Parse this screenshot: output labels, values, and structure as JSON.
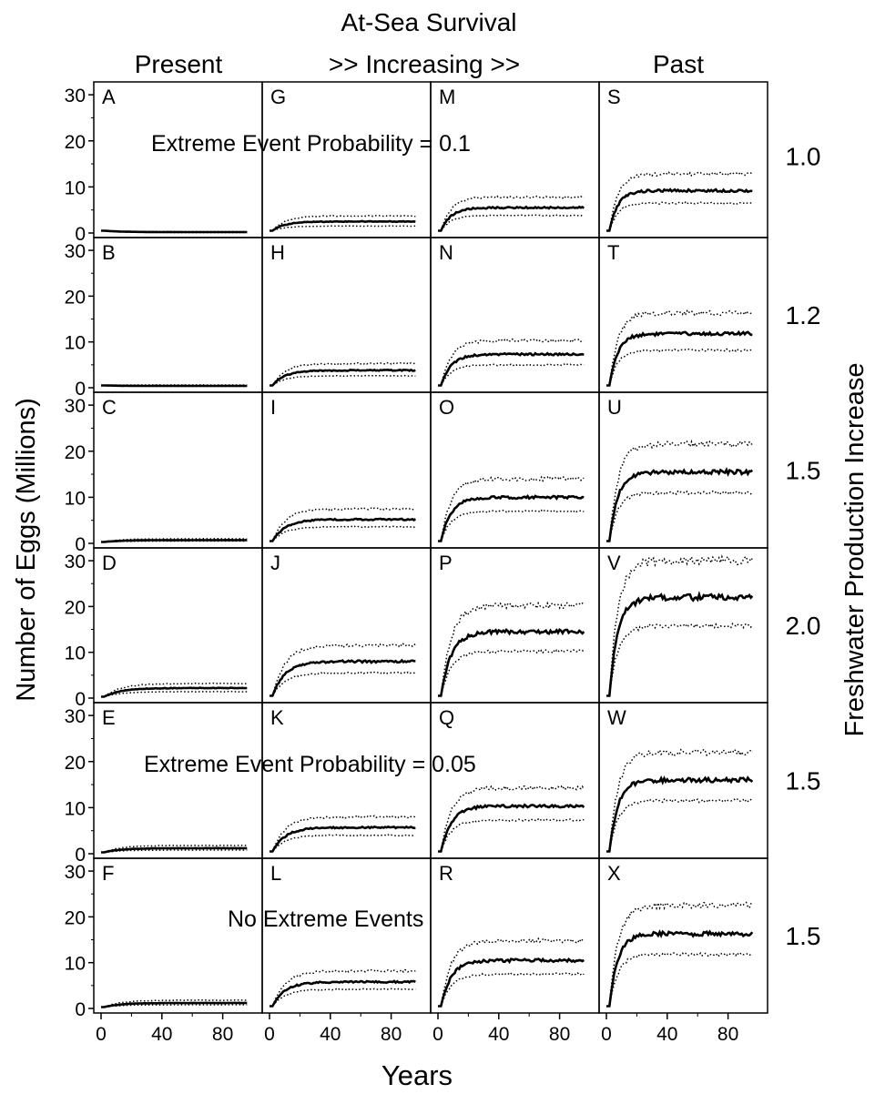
{
  "figure": {
    "title": "At-Sea Survival",
    "column_headers": [
      "Present",
      ">> Increasing >>",
      "Past"
    ],
    "xlabel": "Years",
    "ylabel": "Number of Eggs (Millions)",
    "right_label": "Freshwater Production Increase",
    "row_values": [
      "1.0",
      "1.2",
      "1.5",
      "2.0",
      "1.5",
      "1.5"
    ],
    "annotations": [
      {
        "text": "Extreme Event Probability = 0.1",
        "row": 0
      },
      {
        "text": "Extreme Event Probability = 0.05",
        "row": 4
      },
      {
        "text": "No Extreme Events",
        "row": 5
      }
    ],
    "xticks": [
      "0",
      "40",
      "80"
    ],
    "yticks": [
      "0",
      "10",
      "20",
      "30"
    ]
  },
  "chart_data": {
    "type": "line",
    "layout": "small multiples, 6 rows x 4 columns",
    "x_range": [
      0,
      100
    ],
    "ylim": [
      0,
      32
    ],
    "x_tick_values": [
      0,
      40,
      80
    ],
    "y_tick_values": [
      0,
      10,
      20,
      30
    ],
    "series_styles": {
      "median": "solid thick black",
      "bounds": "dotted black"
    },
    "panels": [
      {
        "label": "A",
        "row": 0,
        "col": 0,
        "start": 0.5,
        "plateau": 0.2,
        "lower": 0.1,
        "upper": 0.3
      },
      {
        "label": "G",
        "row": 0,
        "col": 1,
        "start": 0.5,
        "plateau": 2.5,
        "lower": 1.5,
        "upper": 3.7
      },
      {
        "label": "M",
        "row": 0,
        "col": 2,
        "start": 0.5,
        "plateau": 5.5,
        "lower": 3.8,
        "upper": 7.8
      },
      {
        "label": "S",
        "row": 0,
        "col": 3,
        "start": 0.5,
        "plateau": 9.2,
        "lower": 6.5,
        "upper": 12.8
      },
      {
        "label": "B",
        "row": 1,
        "col": 0,
        "start": 0.5,
        "plateau": 0.4,
        "lower": 0.3,
        "upper": 0.6
      },
      {
        "label": "H",
        "row": 1,
        "col": 1,
        "start": 0.5,
        "plateau": 3.8,
        "lower": 2.6,
        "upper": 5.3
      },
      {
        "label": "N",
        "row": 1,
        "col": 2,
        "start": 0.5,
        "plateau": 7.3,
        "lower": 5.0,
        "upper": 10.3
      },
      {
        "label": "T",
        "row": 1,
        "col": 3,
        "start": 0.5,
        "plateau": 11.8,
        "lower": 8.2,
        "upper": 16.3
      },
      {
        "label": "C",
        "row": 2,
        "col": 0,
        "start": 0.3,
        "plateau": 0.7,
        "lower": 0.5,
        "upper": 1.0
      },
      {
        "label": "I",
        "row": 2,
        "col": 1,
        "start": 0.5,
        "plateau": 5.2,
        "lower": 3.6,
        "upper": 7.5
      },
      {
        "label": "O",
        "row": 2,
        "col": 2,
        "start": 0.5,
        "plateau": 10.0,
        "lower": 7.0,
        "upper": 14.0
      },
      {
        "label": "U",
        "row": 2,
        "col": 3,
        "start": 0.5,
        "plateau": 15.5,
        "lower": 11.0,
        "upper": 21.5
      },
      {
        "label": "D",
        "row": 3,
        "col": 0,
        "start": 0.3,
        "plateau": 2.2,
        "lower": 1.4,
        "upper": 3.2
      },
      {
        "label": "J",
        "row": 3,
        "col": 1,
        "start": 0.5,
        "plateau": 8.0,
        "lower": 5.5,
        "upper": 11.5
      },
      {
        "label": "P",
        "row": 3,
        "col": 2,
        "start": 0.5,
        "plateau": 14.5,
        "lower": 10.2,
        "upper": 20.2
      },
      {
        "label": "V",
        "row": 3,
        "col": 3,
        "start": 0.5,
        "plateau": 22.0,
        "lower": 15.8,
        "upper": 30.0
      },
      {
        "label": "E",
        "row": 4,
        "col": 0,
        "start": 0.3,
        "plateau": 1.2,
        "lower": 0.8,
        "upper": 1.8
      },
      {
        "label": "K",
        "row": 4,
        "col": 1,
        "start": 0.5,
        "plateau": 5.7,
        "lower": 4.0,
        "upper": 8.0
      },
      {
        "label": "Q",
        "row": 4,
        "col": 2,
        "start": 0.5,
        "plateau": 10.3,
        "lower": 7.3,
        "upper": 14.3
      },
      {
        "label": "W",
        "row": 4,
        "col": 3,
        "start": 0.5,
        "plateau": 16.0,
        "lower": 11.5,
        "upper": 22.0
      },
      {
        "label": "F",
        "row": 5,
        "col": 0,
        "start": 0.3,
        "plateau": 1.2,
        "lower": 0.8,
        "upper": 1.8
      },
      {
        "label": "L",
        "row": 5,
        "col": 1,
        "start": 0.5,
        "plateau": 5.8,
        "lower": 4.2,
        "upper": 8.2
      },
      {
        "label": "R",
        "row": 5,
        "col": 2,
        "start": 0.5,
        "plateau": 10.5,
        "lower": 7.5,
        "upper": 14.8
      },
      {
        "label": "X",
        "row": 5,
        "col": 3,
        "start": 0.5,
        "plateau": 16.3,
        "lower": 11.8,
        "upper": 22.5
      }
    ]
  }
}
